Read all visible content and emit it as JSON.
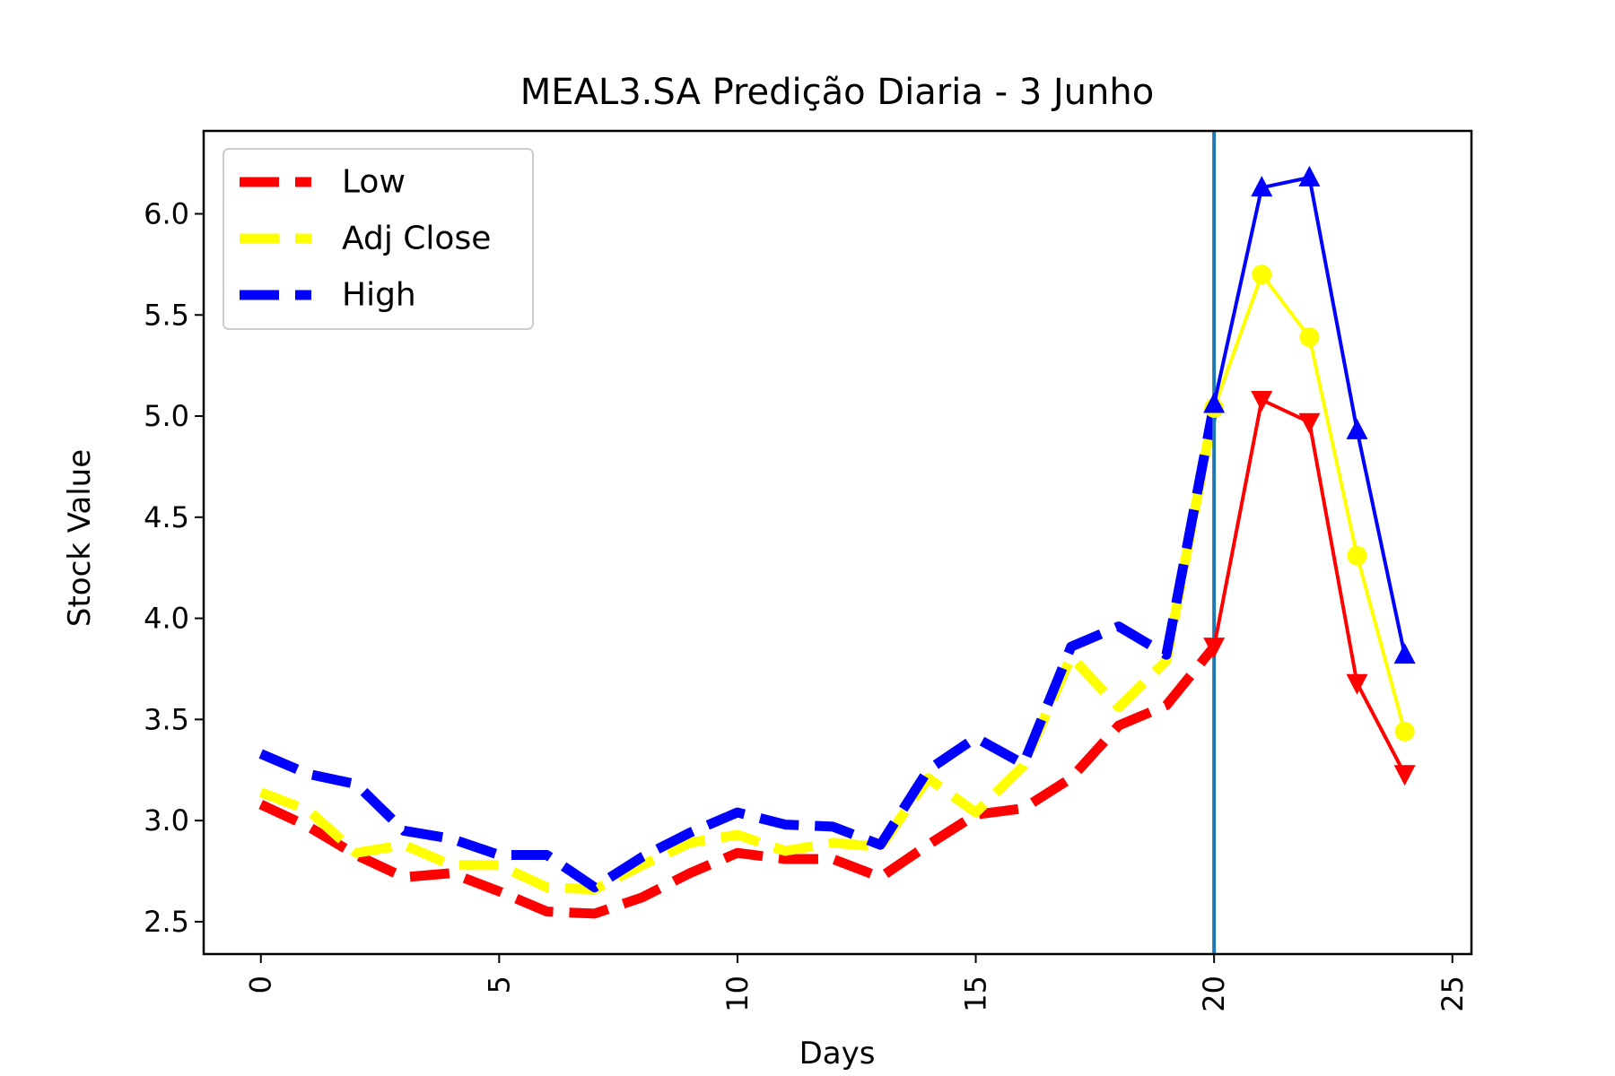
{
  "chart_data": {
    "type": "line",
    "title": "MEAL3.SA Predição Diaria - 3 Junho",
    "xlabel": "Days",
    "ylabel": "Stock Value",
    "xlim": [
      -1.2,
      25.4
    ],
    "ylim": [
      2.34,
      6.41
    ],
    "xticks": [
      0,
      5,
      10,
      15,
      20,
      25
    ],
    "xtick_labels": [
      "0",
      "5",
      "10",
      "15",
      "20",
      "25"
    ],
    "yticks": [
      2.5,
      3.0,
      3.5,
      4.0,
      4.5,
      5.0,
      5.5,
      6.0
    ],
    "ytick_labels": [
      "2.5",
      "3.0",
      "3.5",
      "4.0",
      "4.5",
      "5.0",
      "5.5",
      "6.0"
    ],
    "xtick_rotation": 90,
    "vertical_line": {
      "x": 20,
      "color": "#1f77b4"
    },
    "grid": false,
    "legend_position": "upper-left",
    "series": [
      {
        "name": "Low",
        "color": "#ff0000",
        "marker": "triangle-down",
        "historical": {
          "x": [
            0,
            1,
            2,
            3,
            4,
            5,
            6,
            7,
            8,
            9,
            10,
            11,
            12,
            13,
            14,
            15,
            16,
            17,
            18,
            19,
            20
          ],
          "y": [
            3.08,
            2.97,
            2.83,
            2.72,
            2.74,
            2.65,
            2.55,
            2.54,
            2.62,
            2.74,
            2.84,
            2.81,
            2.81,
            2.72,
            2.88,
            3.03,
            3.06,
            3.21,
            3.47,
            3.57,
            3.86
          ]
        },
        "predicted": {
          "x": [
            20,
            21,
            22,
            23,
            24
          ],
          "y": [
            3.86,
            5.08,
            4.97,
            3.68,
            3.23
          ]
        }
      },
      {
        "name": "Adj Close",
        "color": "#ffff00",
        "marker": "circle",
        "historical": {
          "x": [
            0,
            1,
            2,
            3,
            4,
            5,
            6,
            7,
            8,
            9,
            10,
            11,
            12,
            13,
            14,
            15,
            16,
            17,
            18,
            19,
            20
          ],
          "y": [
            3.14,
            3.05,
            2.84,
            2.88,
            2.78,
            2.78,
            2.67,
            2.66,
            2.78,
            2.89,
            2.93,
            2.85,
            2.89,
            2.87,
            3.21,
            3.04,
            3.27,
            3.81,
            3.56,
            3.79,
            5.04
          ]
        },
        "predicted": {
          "x": [
            20,
            21,
            22,
            23,
            24
          ],
          "y": [
            5.04,
            5.7,
            5.39,
            4.31,
            3.44
          ]
        }
      },
      {
        "name": "High",
        "color": "#0000ff",
        "marker": "triangle-up",
        "historical": {
          "x": [
            0,
            1,
            2,
            3,
            4,
            5,
            6,
            7,
            8,
            9,
            10,
            11,
            12,
            13,
            14,
            15,
            16,
            17,
            18,
            19,
            20
          ],
          "y": [
            3.33,
            3.23,
            3.18,
            2.95,
            2.91,
            2.83,
            2.83,
            2.67,
            2.82,
            2.94,
            3.04,
            2.98,
            2.97,
            2.88,
            3.25,
            3.41,
            3.28,
            3.86,
            3.96,
            3.82,
            5.06
          ]
        },
        "predicted": {
          "x": [
            20,
            21,
            22,
            23,
            24
          ],
          "y": [
            5.06,
            6.13,
            6.18,
            4.93,
            3.82
          ]
        }
      }
    ]
  }
}
